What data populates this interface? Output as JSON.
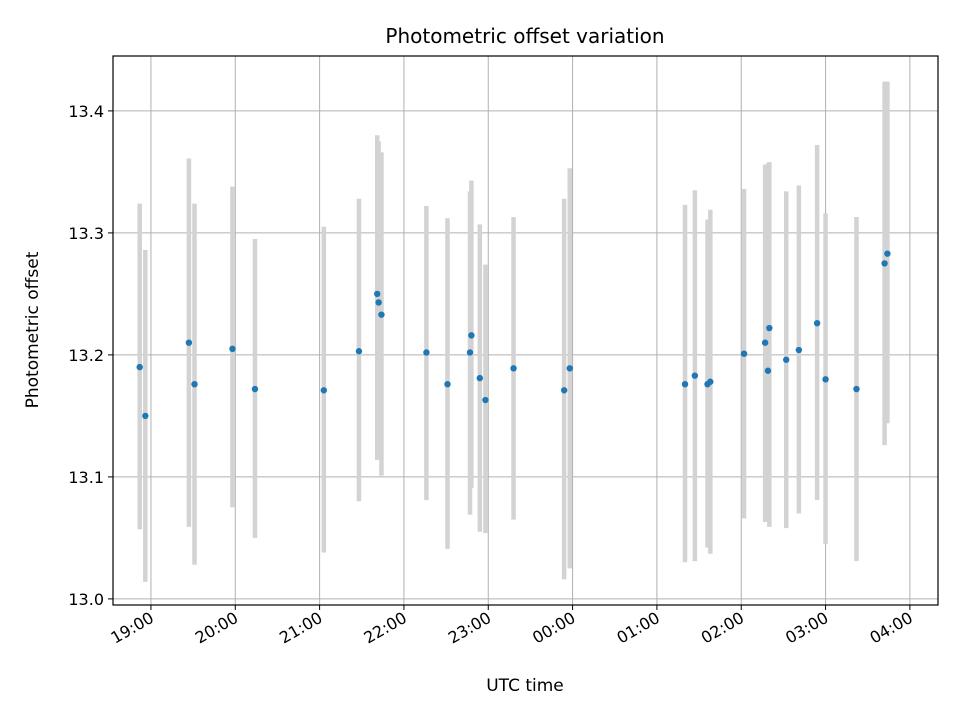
{
  "chart_data": {
    "type": "scatter",
    "title": "Photometric offset variation",
    "xlabel": "UTC time",
    "ylabel": "Photometric offset",
    "grid": true,
    "colors": {
      "point": "#1f77b4",
      "errorbar": "#d3d3d3",
      "grid": "#b0b0b0",
      "axis": "#000000"
    },
    "xlim": [
      "2023-01-01T18:33",
      "2023-01-02T04:20"
    ],
    "ylim": [
      12.995,
      13.445
    ],
    "x_ticks": [
      {
        "value": "2023-01-01T19:00",
        "label": "19:00"
      },
      {
        "value": "2023-01-01T20:00",
        "label": "20:00"
      },
      {
        "value": "2023-01-01T21:00",
        "label": "21:00"
      },
      {
        "value": "2023-01-01T22:00",
        "label": "22:00"
      },
      {
        "value": "2023-01-01T23:00",
        "label": "23:00"
      },
      {
        "value": "2023-01-02T00:00",
        "label": "00:00"
      },
      {
        "value": "2023-01-02T01:00",
        "label": "01:00"
      },
      {
        "value": "2023-01-02T02:00",
        "label": "02:00"
      },
      {
        "value": "2023-01-02T03:00",
        "label": "03:00"
      },
      {
        "value": "2023-01-02T04:00",
        "label": "04:00"
      }
    ],
    "y_ticks": [
      {
        "value": 13.0,
        "label": "13.0"
      },
      {
        "value": 13.1,
        "label": "13.1"
      },
      {
        "value": 13.2,
        "label": "13.2"
      },
      {
        "value": 13.3,
        "label": "13.3"
      },
      {
        "value": 13.4,
        "label": "13.4"
      }
    ],
    "points": [
      {
        "t": "2023-01-01T18:52",
        "y": 13.19,
        "err_low": 13.057,
        "err_high": 13.324
      },
      {
        "t": "2023-01-01T18:56",
        "y": 13.15,
        "err_low": 13.014,
        "err_high": 13.286
      },
      {
        "t": "2023-01-01T19:27",
        "y": 13.21,
        "err_low": 13.059,
        "err_high": 13.361
      },
      {
        "t": "2023-01-01T19:31",
        "y": 13.176,
        "err_low": 13.028,
        "err_high": 13.324
      },
      {
        "t": "2023-01-01T19:58",
        "y": 13.205,
        "err_low": 13.075,
        "err_high": 13.338
      },
      {
        "t": "2023-01-01T20:14",
        "y": 13.172,
        "err_low": 13.05,
        "err_high": 13.295
      },
      {
        "t": "2023-01-01T21:03",
        "y": 13.171,
        "err_low": 13.038,
        "err_high": 13.305
      },
      {
        "t": "2023-01-01T21:28",
        "y": 13.203,
        "err_low": 13.08,
        "err_high": 13.328
      },
      {
        "t": "2023-01-01T21:41",
        "y": 13.25,
        "err_low": 13.114,
        "err_high": 13.38
      },
      {
        "t": "2023-01-01T21:42",
        "y": 13.243,
        "err_low": 13.116,
        "err_high": 13.375
      },
      {
        "t": "2023-01-01T21:44",
        "y": 13.233,
        "err_low": 13.101,
        "err_high": 13.366
      },
      {
        "t": "2023-01-01T22:16",
        "y": 13.202,
        "err_low": 13.081,
        "err_high": 13.322
      },
      {
        "t": "2023-01-01T22:31",
        "y": 13.176,
        "err_low": 13.041,
        "err_high": 13.312
      },
      {
        "t": "2023-01-01T22:47",
        "y": 13.202,
        "err_low": 13.069,
        "err_high": 13.334
      },
      {
        "t": "2023-01-01T22:48",
        "y": 13.216,
        "err_low": 13.091,
        "err_high": 13.343
      },
      {
        "t": "2023-01-01T22:54",
        "y": 13.181,
        "err_low": 13.055,
        "err_high": 13.307
      },
      {
        "t": "2023-01-01T22:58",
        "y": 13.163,
        "err_low": 13.054,
        "err_high": 13.274
      },
      {
        "t": "2023-01-01T23:18",
        "y": 13.189,
        "err_low": 13.065,
        "err_high": 13.313
      },
      {
        "t": "2023-01-01T23:54",
        "y": 13.171,
        "err_low": 13.016,
        "err_high": 13.328
      },
      {
        "t": "2023-01-01T23:58",
        "y": 13.189,
        "err_low": 13.025,
        "err_high": 13.353
      },
      {
        "t": "2023-01-02T01:20",
        "y": 13.176,
        "err_low": 13.03,
        "err_high": 13.323
      },
      {
        "t": "2023-01-02T01:27",
        "y": 13.183,
        "err_low": 13.031,
        "err_high": 13.335
      },
      {
        "t": "2023-01-02T01:36",
        "y": 13.176,
        "err_low": 13.042,
        "err_high": 13.311
      },
      {
        "t": "2023-01-02T01:38",
        "y": 13.178,
        "err_low": 13.037,
        "err_high": 13.319
      },
      {
        "t": "2023-01-02T02:02",
        "y": 13.201,
        "err_low": 13.066,
        "err_high": 13.336
      },
      {
        "t": "2023-01-02T02:17",
        "y": 13.21,
        "err_low": 13.063,
        "err_high": 13.356
      },
      {
        "t": "2023-01-02T02:19",
        "y": 13.187,
        "err_low": 13.087,
        "err_high": 13.357
      },
      {
        "t": "2023-01-02T02:20",
        "y": 13.222,
        "err_low": 13.059,
        "err_high": 13.358
      },
      {
        "t": "2023-01-02T02:32",
        "y": 13.196,
        "err_low": 13.058,
        "err_high": 13.334
      },
      {
        "t": "2023-01-02T02:41",
        "y": 13.204,
        "err_low": 13.07,
        "err_high": 13.339
      },
      {
        "t": "2023-01-02T02:54",
        "y": 13.226,
        "err_low": 13.081,
        "err_high": 13.372
      },
      {
        "t": "2023-01-02T03:00",
        "y": 13.18,
        "err_low": 13.045,
        "err_high": 13.316
      },
      {
        "t": "2023-01-02T03:22",
        "y": 13.172,
        "err_low": 13.031,
        "err_high": 13.313
      },
      {
        "t": "2023-01-02T03:42",
        "y": 13.275,
        "err_low": 13.126,
        "err_high": 13.424
      },
      {
        "t": "2023-01-02T03:44",
        "y": 13.283,
        "err_low": 13.144,
        "err_high": 13.424
      }
    ]
  }
}
